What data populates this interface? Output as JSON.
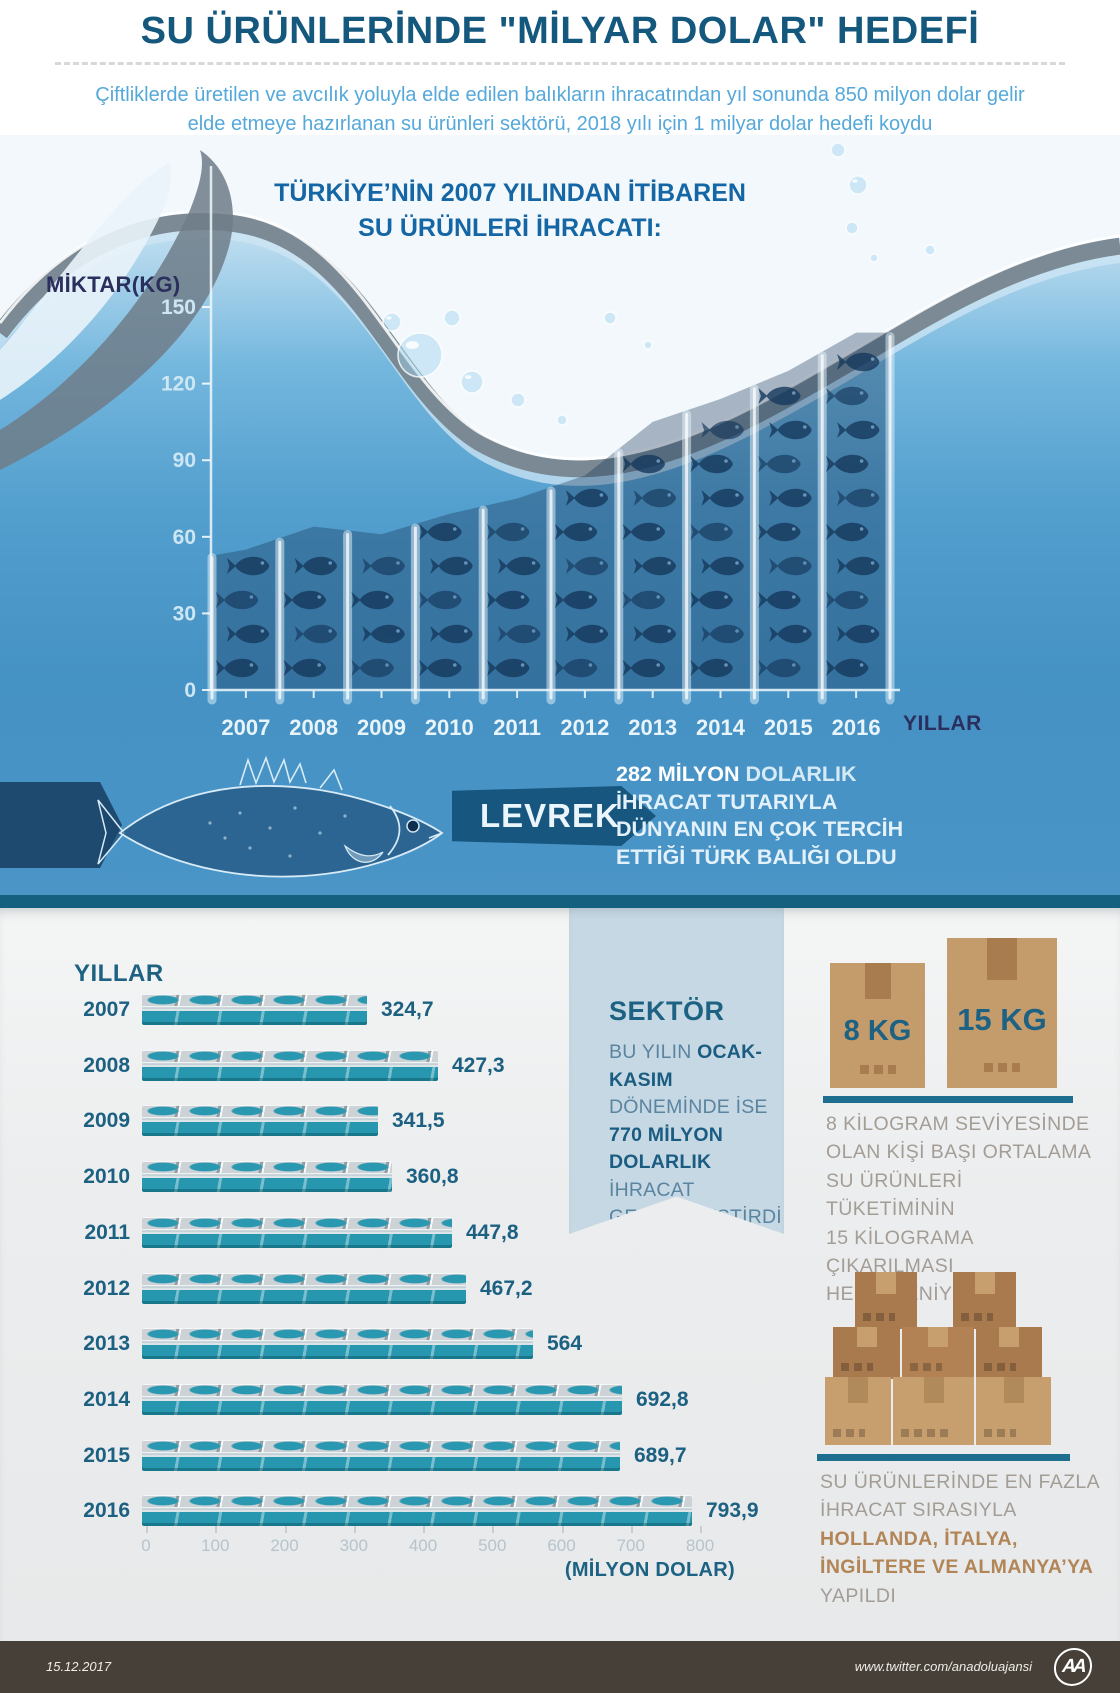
{
  "header": {
    "title": "SU ÜRÜNLERİNDE \"MİLYAR DOLAR\" HEDEFİ",
    "subtitle_line1": "Çiftliklerde üretilen ve avcılık yoluyla elde edilen balıkların ihracatından yıl sonunda 850 milyon dolar gelir",
    "subtitle_line2": "elde etmeye hazırlanan su ürünleri sektörü, 2018 yılı için 1 milyar dolar hedefi koydu"
  },
  "water_chart": {
    "title_line1": "TÜRKİYE’NİN 2007 YILINDAN İTİBAREN",
    "title_line2": "SU ÜRÜNLERİ İHRACATI:"
  },
  "levrek": {
    "banner": "LEVREK",
    "line1_bold": "282 MİLYON",
    "line1_rest": " DOLARLIK",
    "line2": "İHRACAT TUTARIYLA",
    "line3": "DÜNYANIN EN ÇOK TERCİH",
    "line4": "ETTİĞİ TÜRK BALIĞI OLDU"
  },
  "sektor": {
    "title": "SEKTÖR",
    "line1_pre": "BU YILIN ",
    "line1_bold": "OCAK-KASIM",
    "line2": "DÖNEMİNDE İSE",
    "line3_bold": "770 MİLYON DOLARLIK",
    "line4": "İHRACAT",
    "line5": "GERÇEKLEŞTİRDİ"
  },
  "kg_panel": {
    "small_box_label": "8 KG",
    "big_box_label": "15 KG",
    "line1": "8 KİLOGRAM SEVİYESİNDE",
    "line2": "OLAN KİŞİ BAŞI ORTALAMA",
    "line3": "SU ÜRÜNLERİ TÜKETİMİNİN",
    "line4": "15 KİLOGRAMA ÇIKARILMASI",
    "line5": "HEDEFLENİYOR"
  },
  "export_panel": {
    "line1": "SU ÜRÜNLERİNDE EN FAZLA",
    "line2": "İHRACAT SIRASIYLA",
    "line3_bold": "HOLLANDA, İTALYA,",
    "line4_bold": "İNGİLTERE VE ALMANYA’YA",
    "line5": "YAPILDI"
  },
  "footer": {
    "date": "15.12.2017",
    "handle": "www.twitter.com/anadoluajansi",
    "logo_text": "AA"
  },
  "colors": {
    "title_blue": "#14587e",
    "subtitle_blue": "#55a8da",
    "navy_label": "#2b2f5e",
    "teal_money_bar": "#2797af",
    "ribbon_bg": "#c6d8e3",
    "separator_teal": "#16607f",
    "box_brown": "#c49b6b",
    "box_brown_dark": "#a87a4e",
    "muted_gray_text": "#a39d96",
    "brown_bold_text": "#b28557",
    "footer_bg": "#474038"
  },
  "chart_data": [
    {
      "type": "area",
      "title": "TÜRKİYE’NİN 2007 YILINDAN İTİBAREN SU ÜRÜNLERİ İHRACATI",
      "xlabel": "YILLAR",
      "ylabel": "MİKTAR(KG)",
      "categories": [
        "2007",
        "2008",
        "2009",
        "2010",
        "2011",
        "2012",
        "2013",
        "2014",
        "2015",
        "2016"
      ],
      "values": [
        55,
        64,
        61,
        69,
        75,
        84,
        105,
        114,
        125,
        140
      ],
      "ylim": [
        0,
        150
      ],
      "yticks": [
        0,
        30,
        60,
        90,
        120,
        150
      ],
      "legend": "none",
      "grid": false
    },
    {
      "type": "bar",
      "orientation": "horizontal",
      "ylabel": "YILLAR",
      "xlabel": "(MİLYON DOLAR)",
      "categories": [
        "2007",
        "2008",
        "2009",
        "2010",
        "2011",
        "2012",
        "2013",
        "2014",
        "2015",
        "2016"
      ],
      "values": [
        324.7,
        427.3,
        341.5,
        360.8,
        447.8,
        467.2,
        564,
        692.8,
        689.7,
        793.9
      ],
      "value_labels": [
        "324,7",
        "427,3",
        "341,5",
        "360,8",
        "447,8",
        "467,2",
        "564",
        "692,8",
        "689,7",
        "793,9"
      ],
      "xticks": [
        0,
        100,
        200,
        300,
        400,
        500,
        600,
        700,
        800
      ],
      "xlim": [
        0,
        800
      ],
      "legend": "none",
      "grid": false
    }
  ]
}
